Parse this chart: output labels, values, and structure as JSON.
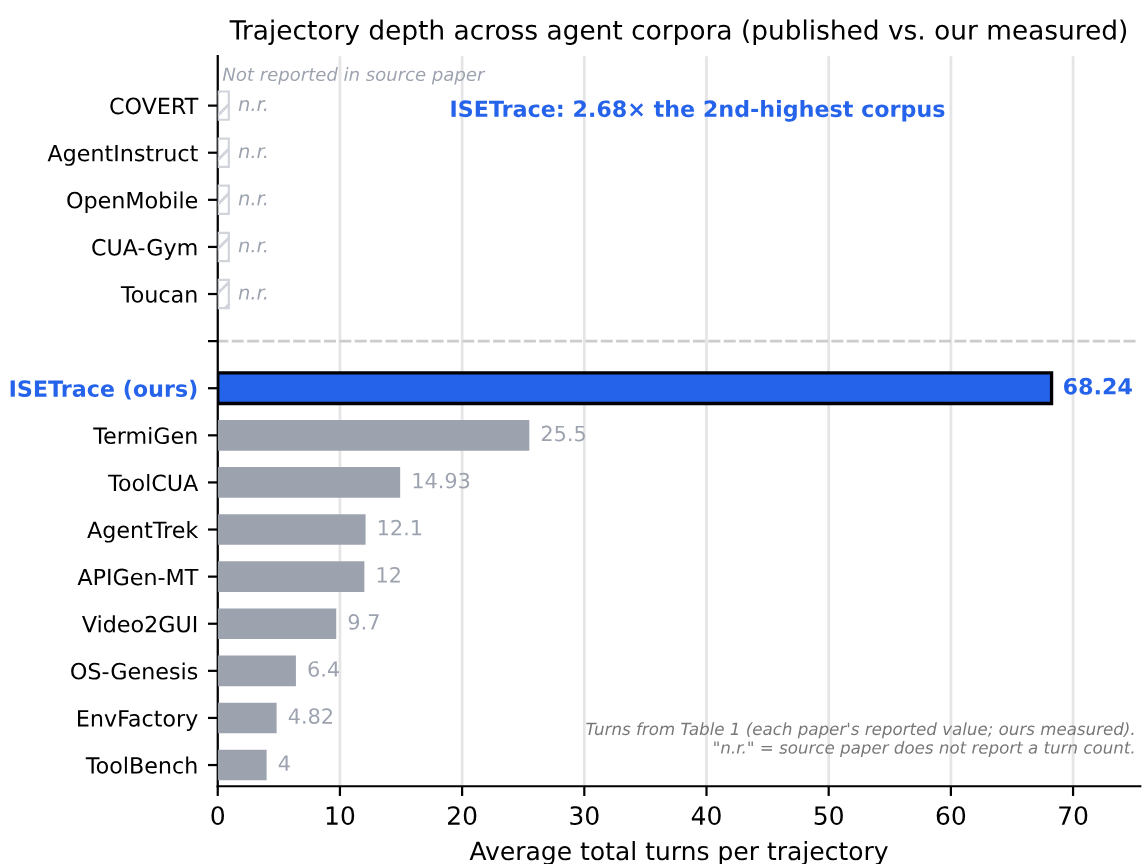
{
  "chart_data": {
    "type": "bar",
    "orientation": "horizontal",
    "title": "Trajectory depth across agent corpora (published vs. our measured)",
    "xlabel": "Average total turns per trajectory",
    "categories": [
      "COVERT",
      "AgentInstruct",
      "OpenMobile",
      "CUA-Gym",
      "Toucan",
      null,
      "ISETrace (ours)",
      "TermiGen",
      "ToolCUA",
      "AgentTrek",
      "APIGen-MT",
      "Video2GUI",
      "OS-Genesis",
      "EnvFactory",
      "ToolBench"
    ],
    "values": [
      null,
      null,
      null,
      null,
      null,
      null,
      68.24,
      25.5,
      14.93,
      12.1,
      12,
      9.7,
      6.4,
      4.82,
      4
    ],
    "value_labels": [
      "n.r.",
      "n.r.",
      "n.r.",
      "n.r.",
      "n.r.",
      null,
      "68.24",
      "25.5",
      "14.93",
      "12.1",
      "12",
      "9.7",
      "6.4",
      "4.82",
      "4"
    ],
    "colors": [
      "#d1d5db",
      "#d1d5db",
      "#d1d5db",
      "#d1d5db",
      "#d1d5db",
      null,
      "#2563eb",
      "#9ca3af",
      "#9ca3af",
      "#9ca3af",
      "#9ca3af",
      "#9ca3af",
      "#9ca3af",
      "#9ca3af",
      "#9ca3af"
    ],
    "xlim": [
      0,
      75.5
    ],
    "xticks": [
      0,
      10,
      20,
      30,
      40,
      50,
      60,
      70
    ],
    "grid": "x",
    "legend": false,
    "annotations": [
      "Not reported in source paper",
      "ISETrace: 2.68× the 2nd-highest corpus",
      "Turns from Table 1 (each paper's reported value; ours measured).\n\"n.r.\" = source paper does not report a turn count."
    ]
  }
}
